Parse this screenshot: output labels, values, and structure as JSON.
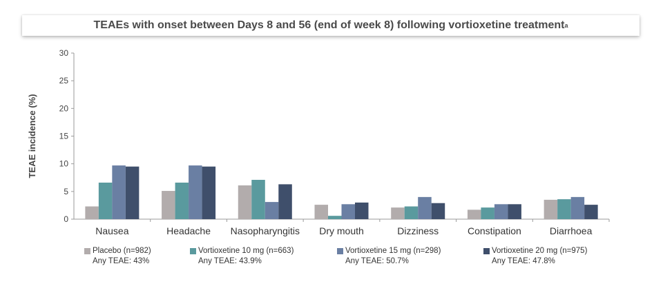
{
  "title": "TEAEs with onset between Days 8 and 56 (end of week 8) following vortioxetine treatment",
  "title_superscript": "a",
  "chart_data": {
    "type": "bar",
    "ylabel": "TEAE incidence (%)",
    "xlabel": "",
    "ylim": [
      0,
      30
    ],
    "yticks": [
      0,
      5,
      10,
      15,
      20,
      25,
      30
    ],
    "grid": false,
    "legend_position": "bottom",
    "categories": [
      "Nausea",
      "Headache",
      "Nasopharyngitis",
      "Dry mouth",
      "Dizziness",
      "Constipation",
      "Diarrhoea"
    ],
    "series": [
      {
        "name": "Placebo (n=982)",
        "note": "Any TEAE: 43%",
        "color": "#b2acac",
        "values": [
          2.3,
          5.1,
          6.1,
          2.6,
          2.1,
          1.7,
          3.5
        ]
      },
      {
        "name": "Vortioxetine 10 mg (n=663)",
        "note": "Any TEAE: 43.9%",
        "color": "#5a9a9e",
        "values": [
          6.6,
          6.6,
          7.1,
          0.6,
          2.3,
          2.1,
          3.6
        ]
      },
      {
        "name": "Vortioxetine 15 mg (n=298)",
        "note": "Any TEAE: 50.7%",
        "color": "#6a7fa3",
        "values": [
          9.7,
          9.7,
          3.1,
          2.7,
          4.0,
          2.7,
          4.0
        ]
      },
      {
        "name": "Vortioxetine 20 mg (n=975)",
        "note": "Any TEAE: 47.8%",
        "color": "#3f4f6b",
        "values": [
          9.5,
          9.5,
          6.3,
          3.0,
          2.9,
          2.7,
          2.6
        ]
      }
    ]
  }
}
